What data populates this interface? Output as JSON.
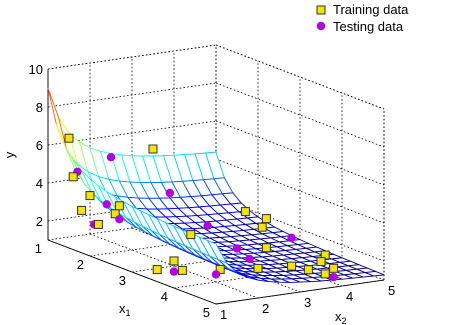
{
  "chart_data": {
    "type": "surface3d",
    "xlabel": "x",
    "xlabel_sub": "1",
    "ylabel": "x",
    "ylabel_sub": "2",
    "zlabel": "y",
    "x1_ticks": [
      "1",
      "2",
      "3",
      "4",
      "5"
    ],
    "x2_ticks": [
      "1",
      "2",
      "3",
      "4",
      "5"
    ],
    "z_ticks": [
      "2",
      "4",
      "6",
      "8",
      "10"
    ],
    "x1_range": [
      1,
      5
    ],
    "x2_range": [
      1,
      5
    ],
    "z_range": [
      1,
      10
    ],
    "grid": true,
    "legend": {
      "position": "top-right",
      "entries": [
        {
          "label": "Training data",
          "marker": "square",
          "color": "#f2e600"
        },
        {
          "label": "Testing data",
          "marker": "circle",
          "color": "#b300e6"
        }
      ]
    },
    "surface": {
      "x1_steps": 20,
      "x2_steps": 16,
      "formula": "y = (1 + x1^-2 + x2^-1.5)^2"
    },
    "training_data": [
      {
        "x1": 1.0,
        "x2": 1.5,
        "y": 6.2
      },
      {
        "x1": 1.0,
        "x2": 3.5,
        "y": 5.0
      },
      {
        "x1": 1.4,
        "x2": 1.2,
        "y": 4.6
      },
      {
        "x1": 1.5,
        "x2": 1.5,
        "y": 3.6
      },
      {
        "x1": 2.5,
        "x2": 1.2,
        "y": 4.0
      },
      {
        "x1": 1.6,
        "x2": 1.2,
        "y": 3.0
      },
      {
        "x1": 1.8,
        "x2": 1.8,
        "y": 2.8
      },
      {
        "x1": 2.0,
        "x2": 1.2,
        "y": 2.6
      },
      {
        "x1": 2.2,
        "x2": 3.2,
        "y": 1.6
      },
      {
        "x1": 3.0,
        "x2": 4.2,
        "y": 2.8
      },
      {
        "x1": 2.2,
        "x2": 4.5,
        "y": 2.4
      },
      {
        "x1": 2.5,
        "x2": 4.6,
        "y": 1.8
      },
      {
        "x1": 4.0,
        "x2": 4.6,
        "y": 1.6
      },
      {
        "x1": 3.4,
        "x2": 1.2,
        "y": 1.4
      },
      {
        "x1": 3.2,
        "x2": 1.8,
        "y": 1.5
      },
      {
        "x1": 3.6,
        "x2": 1.6,
        "y": 1.4
      },
      {
        "x1": 3.8,
        "x2": 2.3,
        "y": 1.4
      },
      {
        "x1": 3.2,
        "x2": 4.0,
        "y": 1.5
      },
      {
        "x1": 4.2,
        "x2": 3.6,
        "y": 1.5
      },
      {
        "x1": 4.0,
        "x2": 3.0,
        "y": 1.4
      },
      {
        "x1": 4.1,
        "x2": 4.4,
        "y": 1.4
      },
      {
        "x1": 4.4,
        "x2": 4.4,
        "y": 1.3
      },
      {
        "x1": 4.3,
        "x2": 3.9,
        "y": 1.3
      },
      {
        "x1": 4.6,
        "x2": 4.0,
        "y": 1.3
      }
    ],
    "testing_data": [
      {
        "x1": 1.1,
        "x2": 2.4,
        "y": 5.0
      },
      {
        "x1": 1.2,
        "x2": 1.5,
        "y": 4.6
      },
      {
        "x1": 1.9,
        "x2": 3.0,
        "y": 3.6
      },
      {
        "x1": 1.4,
        "x2": 2.0,
        "y": 2.9
      },
      {
        "x1": 1.9,
        "x2": 1.8,
        "y": 2.6
      },
      {
        "x1": 1.8,
        "x2": 1.3,
        "y": 2.4
      },
      {
        "x1": 2.6,
        "x2": 3.2,
        "y": 2.4
      },
      {
        "x1": 3.3,
        "x2": 3.2,
        "y": 1.8
      },
      {
        "x1": 3.0,
        "x2": 4.8,
        "y": 1.6
      },
      {
        "x1": 3.6,
        "x2": 3.2,
        "y": 1.5
      },
      {
        "x1": 3.6,
        "x2": 1.4,
        "y": 1.4
      },
      {
        "x1": 4.0,
        "x2": 2.0,
        "y": 1.4
      },
      {
        "x1": 4.8,
        "x2": 4.0,
        "y": 1.3
      }
    ]
  }
}
